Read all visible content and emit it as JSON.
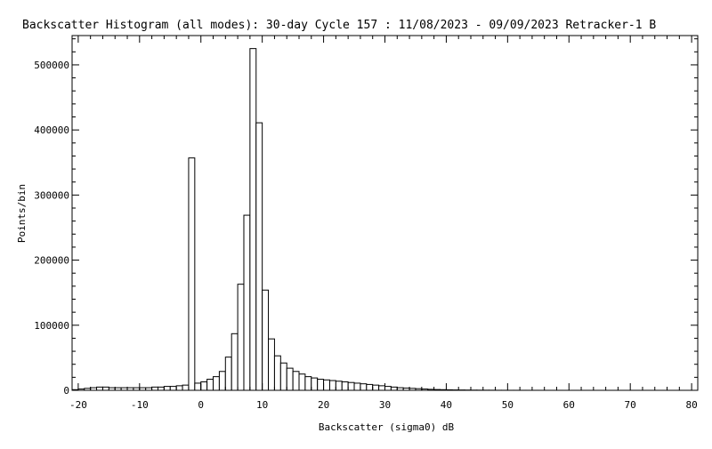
{
  "chart_data": {
    "type": "bar",
    "title": "Backscatter Histogram (all modes): 30-day Cycle 157 : 11/08/2023 - 09/09/2023 Retracker-1 B",
    "xlabel": "Backscatter (sigma0) dB",
    "ylabel": "Points/bin",
    "xlim": [
      -21,
      81
    ],
    "ylim": [
      0,
      545000
    ],
    "xticks": [
      -20,
      -10,
      0,
      10,
      20,
      30,
      40,
      50,
      60,
      70,
      80
    ],
    "xtick_labels": [
      "-20",
      "-10",
      "0",
      "10",
      "20",
      "30",
      "40",
      "50",
      "60",
      "70",
      "80"
    ],
    "yticks": [
      0,
      100000,
      200000,
      300000,
      400000,
      500000
    ],
    "ytick_labels": [
      "0",
      "100000",
      "200000",
      "300000",
      "400000",
      "500000"
    ],
    "bin_width": 1,
    "bin_start": -21,
    "values": [
      1000,
      2000,
      3000,
      4000,
      5000,
      5000,
      4000,
      4000,
      4000,
      4000,
      4000,
      4000,
      4000,
      5000,
      5000,
      6000,
      6000,
      7000,
      8000,
      357000,
      11000,
      13000,
      17000,
      21000,
      29000,
      51000,
      87000,
      163000,
      269000,
      525000,
      411000,
      154000,
      79000,
      53000,
      42000,
      34000,
      29000,
      25000,
      21000,
      19000,
      17000,
      16000,
      15000,
      14000,
      13000,
      12000,
      11000,
      10000,
      9000,
      8000,
      7000,
      6000,
      5000,
      4000,
      3500,
      3000,
      2500,
      2000,
      1500,
      1200,
      1000,
      800,
      600,
      500,
      400,
      300,
      250,
      200,
      150,
      100,
      80,
      60,
      50,
      40,
      30,
      25,
      20,
      15,
      10,
      8,
      6,
      5,
      4,
      3,
      3,
      2,
      2,
      1,
      1,
      1,
      1,
      1,
      1,
      1,
      1,
      1,
      1,
      1,
      1,
      1,
      1
    ],
    "grid": false,
    "colors": {
      "bar_fill": "#ffffff",
      "bar_stroke": "#000000",
      "axis": "#000000",
      "background": "#ffffff"
    }
  }
}
